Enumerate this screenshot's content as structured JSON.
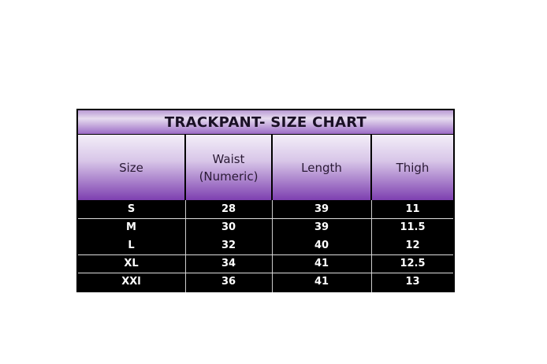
{
  "title": "TRACKPANT- SIZE CHART",
  "headers": [
    "Size",
    "Waist\n(Numeric)",
    "Length",
    "Thigh"
  ],
  "header_lines": {
    "waist1": "Waist",
    "waist2": "(Numeric)"
  },
  "rows": [
    [
      "S",
      "28",
      "39",
      "11"
    ],
    [
      "M",
      "30",
      "39",
      "11.5"
    ],
    [
      "L",
      "32",
      "40",
      "12"
    ],
    [
      "XL",
      "34",
      "41",
      "12.5"
    ],
    [
      "XXl",
      "36",
      "41",
      "13"
    ]
  ],
  "colors": {
    "header_purple": "#7d3fb0",
    "body_bg": "#000000"
  }
}
